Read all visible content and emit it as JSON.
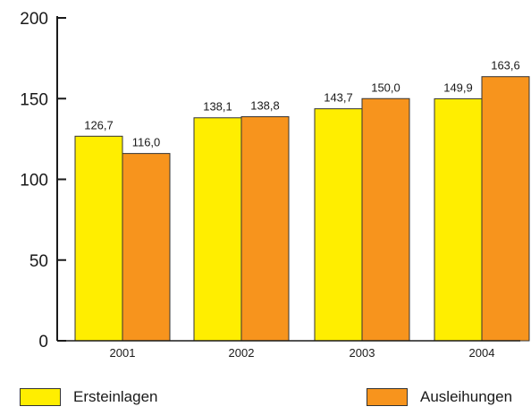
{
  "chart_data": {
    "type": "bar",
    "categories": [
      "2001",
      "2002",
      "2003",
      "2004"
    ],
    "series": [
      {
        "name": "Ersteinlagen",
        "values": [
          126.7,
          138.1,
          143.7,
          149.9
        ],
        "labels": [
          "126,7",
          "138,1",
          "143,7",
          "149,9"
        ],
        "color": "#ffee00"
      },
      {
        "name": "Ausleihungen",
        "values": [
          116.0,
          138.8,
          150.0,
          163.6
        ],
        "labels": [
          "116,0",
          "138,8",
          "150,0",
          "163,6"
        ],
        "color": "#f7941d"
      }
    ],
    "ylim": [
      0,
      200
    ],
    "yticks": [
      "0",
      "50",
      "100",
      "150",
      "200"
    ],
    "title": "",
    "xlabel": "",
    "ylabel": "",
    "legend_position": "bottom",
    "grid": false
  }
}
